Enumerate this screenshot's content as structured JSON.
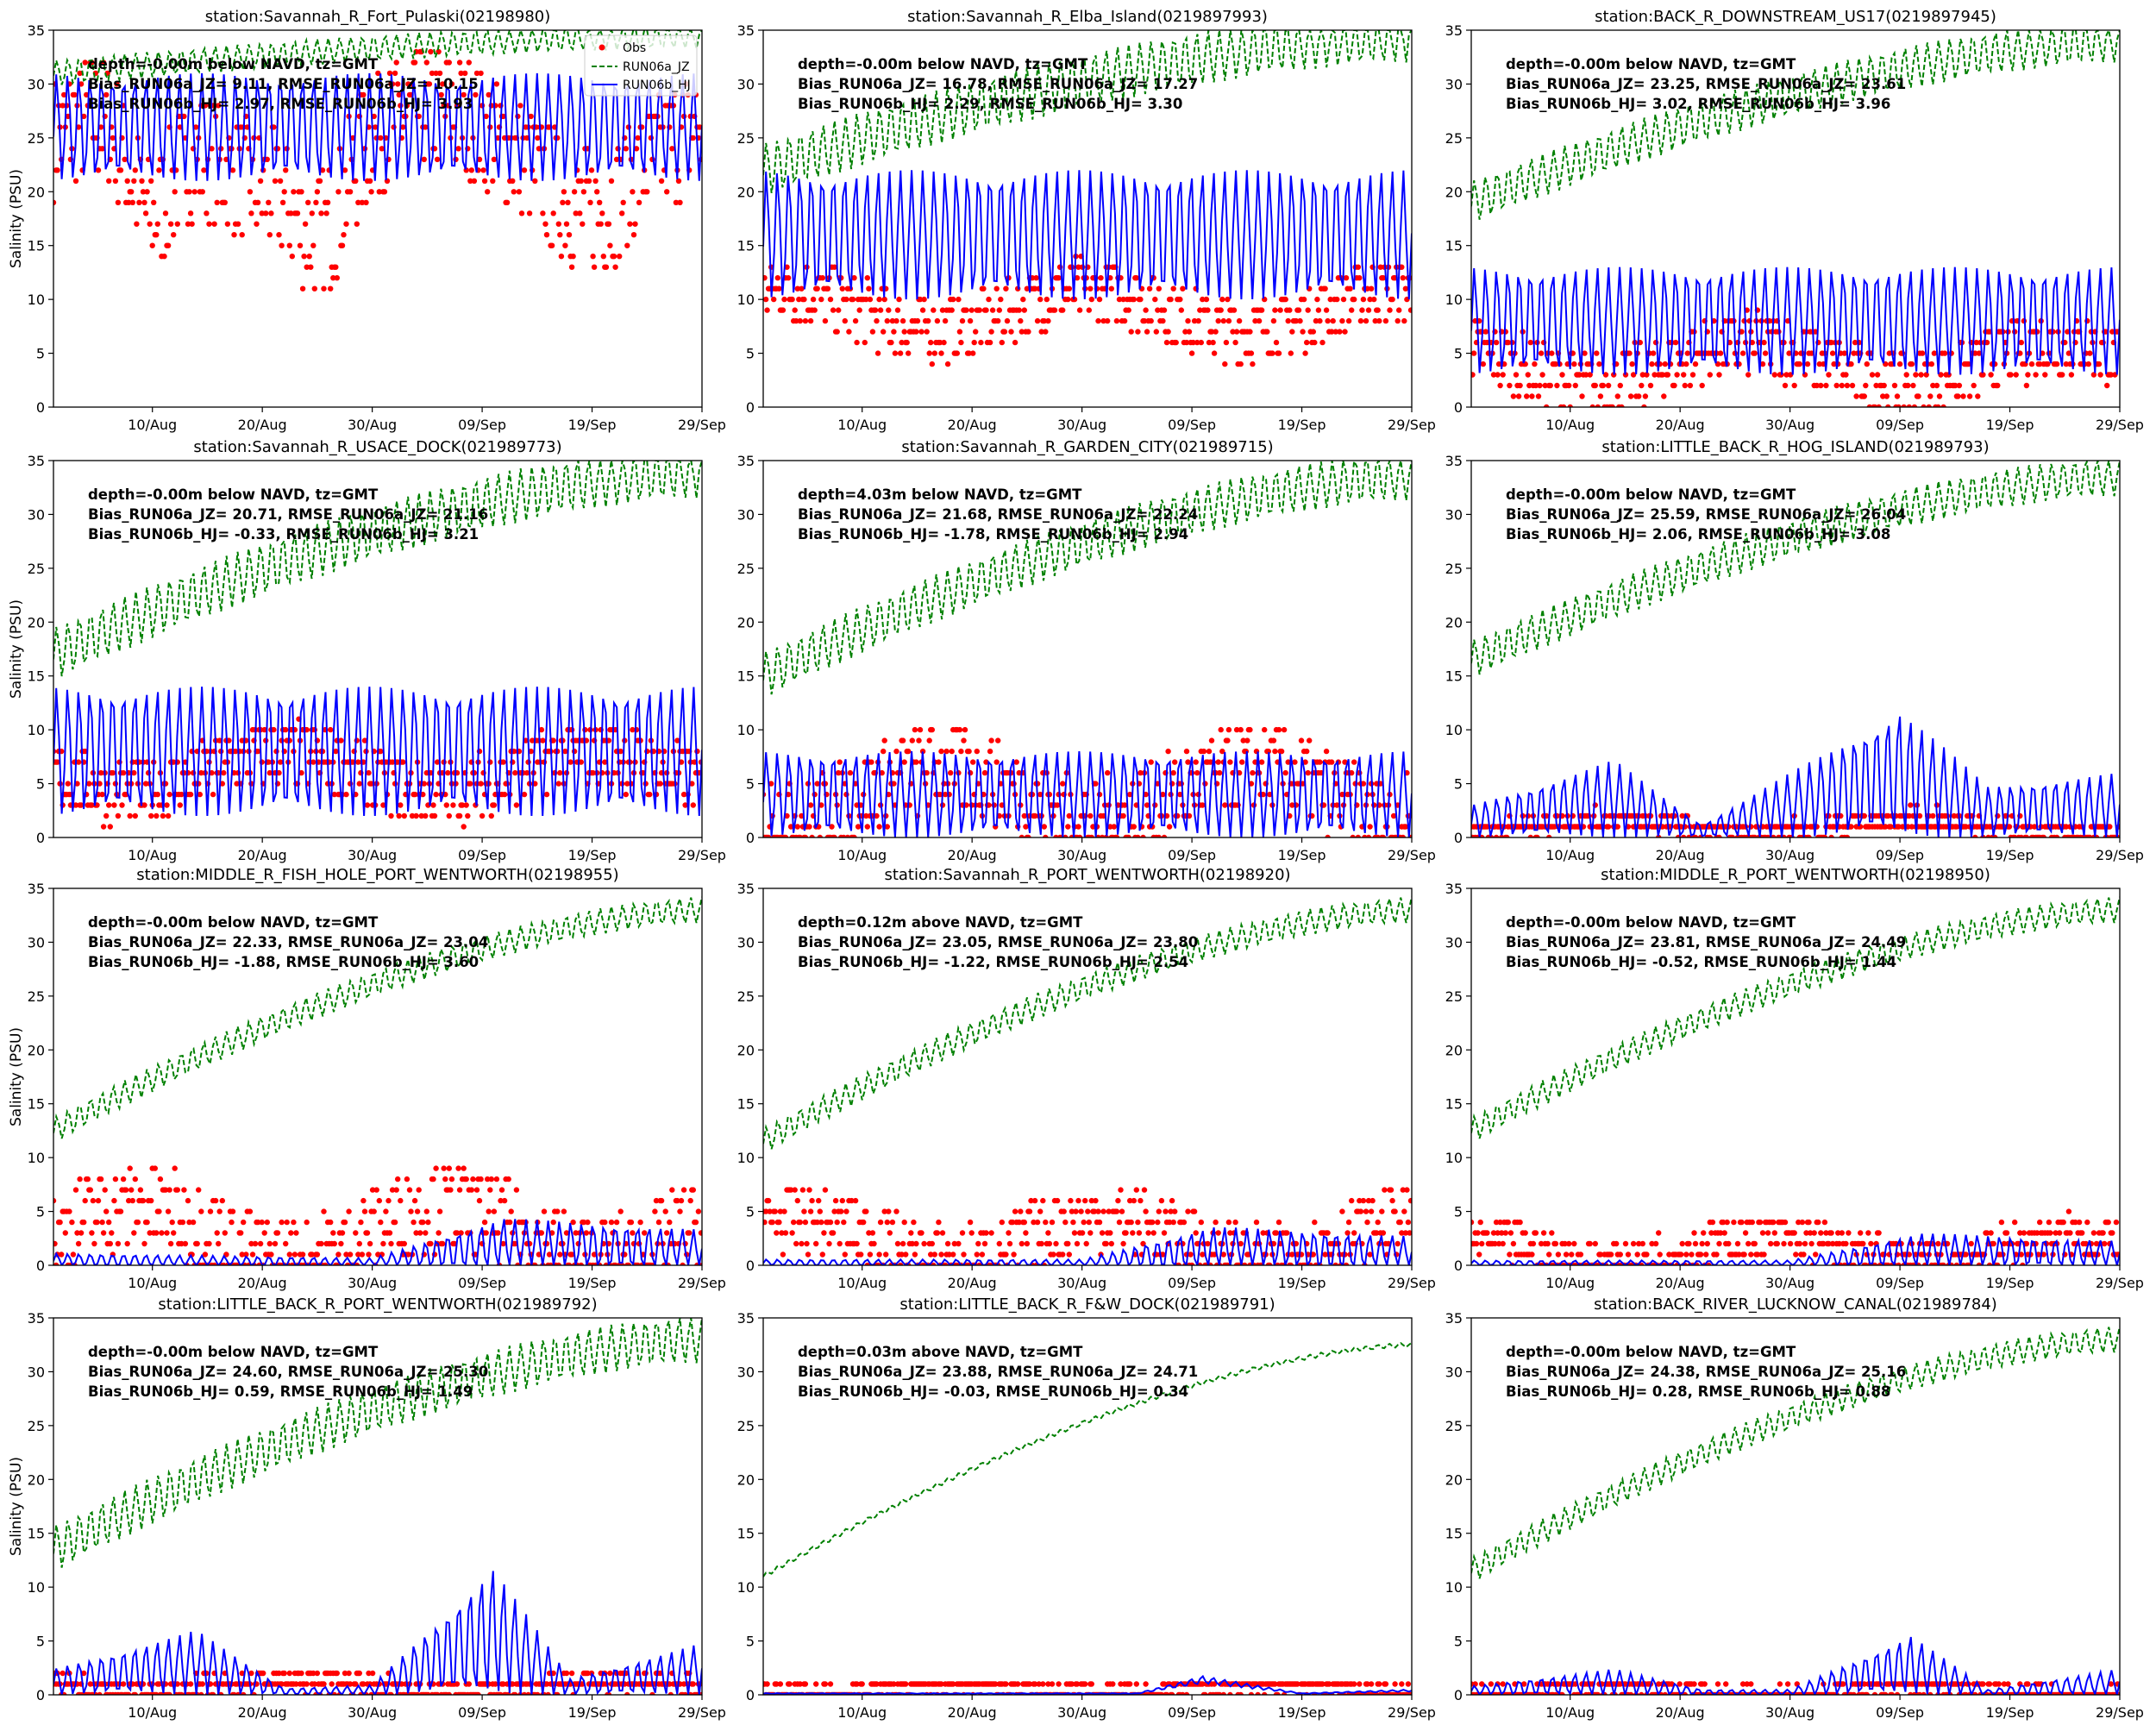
{
  "chart_data": {
    "type": "line",
    "ylabel": "Salinity (PSU)",
    "ylim": [
      0,
      35
    ],
    "yticks": [
      "0",
      "5",
      "10",
      "15",
      "20",
      "25",
      "30",
      "35"
    ],
    "xticks": [
      "10/Aug",
      "20/Aug",
      "30/Aug",
      "09/Sep",
      "19/Sep",
      "29/Sep"
    ],
    "xtick_days": [
      10,
      20,
      30,
      40,
      50,
      60
    ],
    "xlim_days": [
      1,
      60
    ],
    "legend": {
      "location": "top-right",
      "entries": [
        "Obs",
        "RUN06a_JZ",
        "RUN06b_HJ"
      ]
    },
    "series_styles": {
      "Obs": {
        "color": "#ff0000",
        "marker": "dot"
      },
      "RUN06a_JZ": {
        "color": "#008000",
        "line": "dashed"
      },
      "RUN06b_HJ": {
        "color": "#0000ff",
        "line": "solid"
      }
    },
    "panels": [
      {
        "title": "station:Savannah_R_Fort_Pulaski(02198980)",
        "depth": "depth=-0.00m below NAVD, tz=GMT",
        "bias_a": "Bias_RUN06a_JZ=  9.11, RMSE_RUN06a_JZ= 10.15",
        "bias_b": "Bias_RUN06b_HJ=  2.97, RMSE_RUN06b_HJ=  3.93",
        "jz": {
          "start": 31,
          "end": 34.5,
          "amp": 1.2
        },
        "hj": {
          "mean": 26,
          "amp": 5,
          "env": [
            [
              1,
              1
            ],
            [
              60,
              1
            ]
          ]
        },
        "obs": {
          "mean": 24,
          "amp": 6,
          "dips": [
            [
              10,
              18
            ],
            [
              25,
              16
            ],
            [
              50,
              18
            ]
          ]
        },
        "show_legend": true
      },
      {
        "title": "station:Savannah_R_Elba_Island(0219897993)",
        "depth": "depth=-0.00m below NAVD, tz=GMT",
        "bias_a": "Bias_RUN06a_JZ= 16.78, RMSE_RUN06a_JZ= 17.27",
        "bias_b": "Bias_RUN06b_HJ=  2.29, RMSE_RUN06b_HJ=  3.30",
        "jz": {
          "start": 22,
          "end": 34.5,
          "amp": 2.5
        },
        "hj": {
          "mean": 16,
          "amp": 6,
          "env": [
            [
              1,
              1
            ],
            [
              60,
              1
            ]
          ]
        },
        "obs": {
          "mean": 9,
          "amp": 3,
          "dips": []
        }
      },
      {
        "title": "station:BACK_R_DOWNSTREAM_US17(0219897945)",
        "depth": "depth=-0.00m below NAVD, tz=GMT",
        "bias_a": "Bias_RUN06a_JZ= 23.25, RMSE_RUN06a_JZ= 23.61",
        "bias_b": "Bias_RUN06b_HJ=  3.02, RMSE_RUN06b_HJ=  3.96",
        "jz": {
          "start": 19,
          "end": 34,
          "amp": 2
        },
        "hj": {
          "mean": 8,
          "amp": 5,
          "env": [
            [
              1,
              1
            ],
            [
              60,
              1
            ]
          ]
        },
        "obs": {
          "mean": 4,
          "amp": 3,
          "dips": []
        }
      },
      {
        "title": "station:Savannah_R_USACE_DOCK(021989773)",
        "depth": "depth=-0.00m below NAVD, tz=GMT",
        "bias_a": "Bias_RUN06a_JZ= 20.71, RMSE_RUN06a_JZ= 21.16",
        "bias_b": "Bias_RUN06b_HJ= -0.33, RMSE_RUN06b_HJ=  3.21",
        "jz": {
          "start": 17,
          "end": 34,
          "amp": 2.5
        },
        "hj": {
          "mean": 8,
          "amp": 6,
          "env": [
            [
              1,
              1
            ],
            [
              60,
              1
            ]
          ]
        },
        "obs": {
          "mean": 6,
          "amp": 3,
          "dips": []
        }
      },
      {
        "title": "station:Savannah_R_GARDEN_CITY(021989715)",
        "depth": "depth=4.03m below NAVD, tz=GMT",
        "bias_a": "Bias_RUN06a_JZ= 21.68, RMSE_RUN06a_JZ= 22.24",
        "bias_b": "Bias_RUN06b_HJ= -1.78, RMSE_RUN06b_HJ=  2.94",
        "jz": {
          "start": 15,
          "end": 33.5,
          "amp": 2.2
        },
        "hj": {
          "mean": 4,
          "amp": 4,
          "env": [
            [
              1,
              1
            ],
            [
              60,
              1
            ]
          ]
        },
        "obs": {
          "mean": 4,
          "amp": 4,
          "dips": []
        }
      },
      {
        "title": "station:LITTLE_BACK_R_HOG_ISLAND(021989793)",
        "depth": "depth=-0.00m below NAVD, tz=GMT",
        "bias_a": "Bias_RUN06a_JZ= 25.59, RMSE_RUN06a_JZ= 26.04",
        "bias_b": "Bias_RUN06b_HJ=  2.06, RMSE_RUN06b_HJ=  3.08",
        "jz": {
          "start": 16.5,
          "end": 33.5,
          "amp": 1.8
        },
        "hj": {
          "mean": 3,
          "amp": 3,
          "env": [
            [
              1,
              0.5
            ],
            [
              14,
              1.2
            ],
            [
              22,
              0.2
            ],
            [
              40,
              2
            ],
            [
              48,
              0.8
            ],
            [
              60,
              1
            ]
          ]
        },
        "obs": {
          "mean": 1,
          "amp": 1,
          "dips": []
        }
      },
      {
        "title": "station:MIDDLE_R_FISH_HOLE_PORT_WENTWORTH(02198955)",
        "depth": "depth=-0.00m below NAVD, tz=GMT",
        "bias_a": "Bias_RUN06a_JZ= 22.33, RMSE_RUN06a_JZ= 23.04",
        "bias_b": "Bias_RUN06b_HJ= -1.88, RMSE_RUN06b_HJ=  3.60",
        "jz": {
          "start": 12.5,
          "end": 33,
          "amp": 1.2
        },
        "hj": {
          "mean": 1,
          "amp": 1.2,
          "env": [
            [
              1,
              0.5
            ],
            [
              30,
              0.3
            ],
            [
              42,
              2
            ],
            [
              60,
              1.5
            ]
          ]
        },
        "obs": {
          "mean": 3,
          "amp": 4,
          "dips": []
        }
      },
      {
        "title": "station:Savannah_R_PORT_WENTWORTH(02198920)",
        "depth": "depth=0.12m above NAVD, tz=GMT",
        "bias_a": "Bias_RUN06a_JZ= 23.05, RMSE_RUN06a_JZ= 23.80",
        "bias_b": "Bias_RUN06b_HJ= -1.22, RMSE_RUN06b_HJ=  2.54",
        "jz": {
          "start": 11.5,
          "end": 33,
          "amp": 1.2
        },
        "hj": {
          "mean": 0.8,
          "amp": 1,
          "env": [
            [
              1,
              0.3
            ],
            [
              30,
              0.3
            ],
            [
              42,
              2
            ],
            [
              60,
              1.5
            ]
          ]
        },
        "obs": {
          "mean": 2.5,
          "amp": 3,
          "dips": []
        }
      },
      {
        "title": "station:MIDDLE_R_PORT_WENTWORTH(02198950)",
        "depth": "depth=-0.00m below NAVD, tz=GMT",
        "bias_a": "Bias_RUN06a_JZ= 23.81, RMSE_RUN06a_JZ= 24.49",
        "bias_b": "Bias_RUN06b_HJ= -0.52, RMSE_RUN06b_HJ=  1.44",
        "jz": {
          "start": 12.5,
          "end": 33,
          "amp": 1.2
        },
        "hj": {
          "mean": 0.7,
          "amp": 0.8,
          "env": [
            [
              1,
              0.3
            ],
            [
              30,
              0.3
            ],
            [
              42,
              2
            ],
            [
              60,
              1.5
            ]
          ]
        },
        "obs": {
          "mean": 1.5,
          "amp": 2,
          "dips": []
        }
      },
      {
        "title": "station:LITTLE_BACK_R_PORT_WENTWORTH(021989792)",
        "depth": "depth=-0.00m below NAVD, tz=GMT",
        "bias_a": "Bias_RUN06a_JZ= 24.60, RMSE_RUN06a_JZ= 25.30",
        "bias_b": "Bias_RUN06b_HJ=  0.59, RMSE_RUN06b_HJ=  1.49",
        "jz": {
          "start": 13.5,
          "end": 33,
          "amp": 2.2
        },
        "hj": {
          "mean": 1.5,
          "amp": 1.5,
          "env": [
            [
              1,
              0.8
            ],
            [
              14,
              2
            ],
            [
              22,
              0.2
            ],
            [
              30,
              0.3
            ],
            [
              41,
              4
            ],
            [
              48,
              0.5
            ],
            [
              60,
              1.6
            ]
          ]
        },
        "obs": {
          "mean": 0.8,
          "amp": 1,
          "dips": []
        }
      },
      {
        "title": "station:LITTLE_BACK_R_F&W_DOCK(021989791)",
        "depth": "depth=0.03m above NAVD, tz=GMT",
        "bias_a": "Bias_RUN06a_JZ= 23.88, RMSE_RUN06a_JZ= 24.71",
        "bias_b": "Bias_RUN06b_HJ= -0.03, RMSE_RUN06b_HJ=  0.34",
        "jz": {
          "start": 11,
          "end": 32.5,
          "amp": 0.2
        },
        "hj": {
          "mean": 0.4,
          "amp": 0.1,
          "env": [
            [
              1,
              0.3
            ],
            [
              35,
              0.3
            ],
            [
              41,
              3.5
            ],
            [
              50,
              0.3
            ],
            [
              60,
              1
            ]
          ]
        },
        "obs": {
          "mean": 0.5,
          "amp": 0.5,
          "dips": []
        }
      },
      {
        "title": "station:BACK_RIVER_LUCKNOW_CANAL(021989784)",
        "depth": "depth=-0.00m below NAVD, tz=GMT",
        "bias_a": "Bias_RUN06a_JZ= 24.38, RMSE_RUN06a_JZ= 25.16",
        "bias_b": "Bias_RUN06b_HJ=  0.28, RMSE_RUN06b_HJ=  0.88",
        "jz": {
          "start": 11.5,
          "end": 33,
          "amp": 1.2
        },
        "hj": {
          "mean": 0.8,
          "amp": 0.8,
          "env": [
            [
              1,
              0.5
            ],
            [
              14,
              1.5
            ],
            [
              22,
              0.3
            ],
            [
              30,
              0.3
            ],
            [
              41,
              3.5
            ],
            [
              48,
              0.3
            ],
            [
              60,
              1.5
            ]
          ]
        },
        "obs": {
          "mean": 0.4,
          "amp": 0.4,
          "dips": []
        }
      }
    ]
  }
}
